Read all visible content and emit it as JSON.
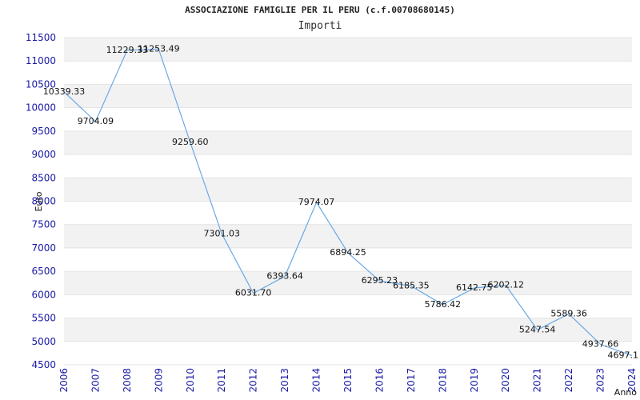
{
  "chart_data": {
    "type": "line",
    "title": "ASSOCIAZIONE FAMIGLIE PER IL PERU (c.f.00708680145)",
    "subtitle": "Importi",
    "xlabel": "Anno",
    "ylabel": "Euro",
    "x": [
      "2006",
      "2007",
      "2008",
      "2009",
      "2010",
      "2011",
      "2012",
      "2013",
      "2014",
      "2015",
      "2016",
      "2017",
      "2018",
      "2019",
      "2020",
      "2021",
      "2022",
      "2023",
      "2024"
    ],
    "values": [
      10339.33,
      9704.09,
      11229.33,
      11253.49,
      9259.6,
      7301.03,
      6031.7,
      6393.64,
      7974.07,
      6894.25,
      6295.23,
      6185.35,
      5786.42,
      6142.75,
      6202.12,
      5247.54,
      5589.36,
      4937.66,
      4697.1
    ],
    "value_labels": [
      "10339.33",
      "9704.09",
      "11229.33",
      "11253.49",
      "9259.60",
      "7301.03",
      "6031.70",
      "6393.64",
      "7974.07",
      "6894.25",
      "6295.23",
      "6185.35",
      "5786.42",
      "6142.75",
      "6202.12",
      "5247.54",
      "5589.36",
      "4937.66",
      "4697.1"
    ],
    "yticks": [
      "4500",
      "5000",
      "5500",
      "6000",
      "6500",
      "7000",
      "7500",
      "8000",
      "8500",
      "9000",
      "9500",
      "10000",
      "10500",
      "11000",
      "11500"
    ],
    "ylim": [
      4500,
      11500
    ],
    "grid": true,
    "line_color": "#6aa9e6",
    "band_color": "#f2f2f2",
    "tick_color": "#1a1aa6"
  }
}
